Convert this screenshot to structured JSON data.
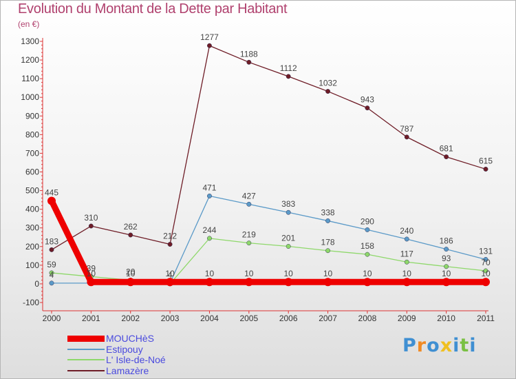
{
  "chart_data": {
    "type": "line",
    "title": "Evolution du Montant de la Dette par Habitant",
    "subtitle": "(en €)",
    "xlabel": "",
    "ylabel": "",
    "x": [
      "2000",
      "2001",
      "2002",
      "2003",
      "2004",
      "2005",
      "2006",
      "2007",
      "2008",
      "2009",
      "2010",
      "2011"
    ],
    "yticks": [
      -100,
      0,
      100,
      200,
      300,
      400,
      500,
      600,
      700,
      800,
      900,
      1000,
      1100,
      1200,
      1300
    ],
    "ylim": [
      -100,
      1300
    ],
    "grid": false,
    "legend_position": "bottom-left",
    "series": [
      {
        "name": "Lamazère",
        "color": "#6e1c26",
        "width": 1.3,
        "values": [
          183,
          310,
          262,
          212,
          1277,
          1188,
          1112,
          1032,
          943,
          787,
          681,
          615
        ],
        "labels": [
          "183",
          "310",
          "262",
          "212",
          "1277",
          "1188",
          "1112",
          "1032",
          "943",
          "787",
          "681",
          "615"
        ]
      },
      {
        "name": "Estipouy",
        "color": "#5b9ac8",
        "width": 1.3,
        "values": [
          4,
          4,
          4,
          4,
          471,
          427,
          383,
          338,
          290,
          240,
          186,
          131
        ],
        "labels": [
          "4",
          "",
          "",
          "4",
          "471",
          "427",
          "383",
          "338",
          "290",
          "240",
          "186",
          "131"
        ]
      },
      {
        "name": "L' Isle-de-Noé",
        "color": "#8ed86a",
        "width": 1.3,
        "values": [
          59,
          39,
          20,
          0,
          244,
          219,
          201,
          178,
          158,
          117,
          93,
          70
        ],
        "labels": [
          "59",
          "39",
          "20",
          "",
          "244",
          "219",
          "201",
          "178",
          "158",
          "117",
          "93",
          "70"
        ]
      },
      {
        "name": "MOUCHèS",
        "color": "#ee0000",
        "width": 9,
        "values": [
          445,
          10,
          10,
          10,
          10,
          10,
          10,
          10,
          10,
          10,
          10,
          10
        ],
        "labels": [
          "445",
          "10",
          "10",
          "10",
          "10",
          "10",
          "10",
          "10",
          "10",
          "10",
          "10",
          "10"
        ]
      }
    ],
    "legend_order": [
      "MOUCHèS",
      "Estipouy",
      "L' Isle-de-Noé",
      "Lamazère"
    ]
  },
  "brand": {
    "logo_text": "Proxiti",
    "letter_colors": [
      "#3f8fd2",
      "#f08a24",
      "#3f8fd2",
      "#f0c020",
      "#3f8fd2",
      "#7ac043",
      "#3f8fd2"
    ]
  }
}
